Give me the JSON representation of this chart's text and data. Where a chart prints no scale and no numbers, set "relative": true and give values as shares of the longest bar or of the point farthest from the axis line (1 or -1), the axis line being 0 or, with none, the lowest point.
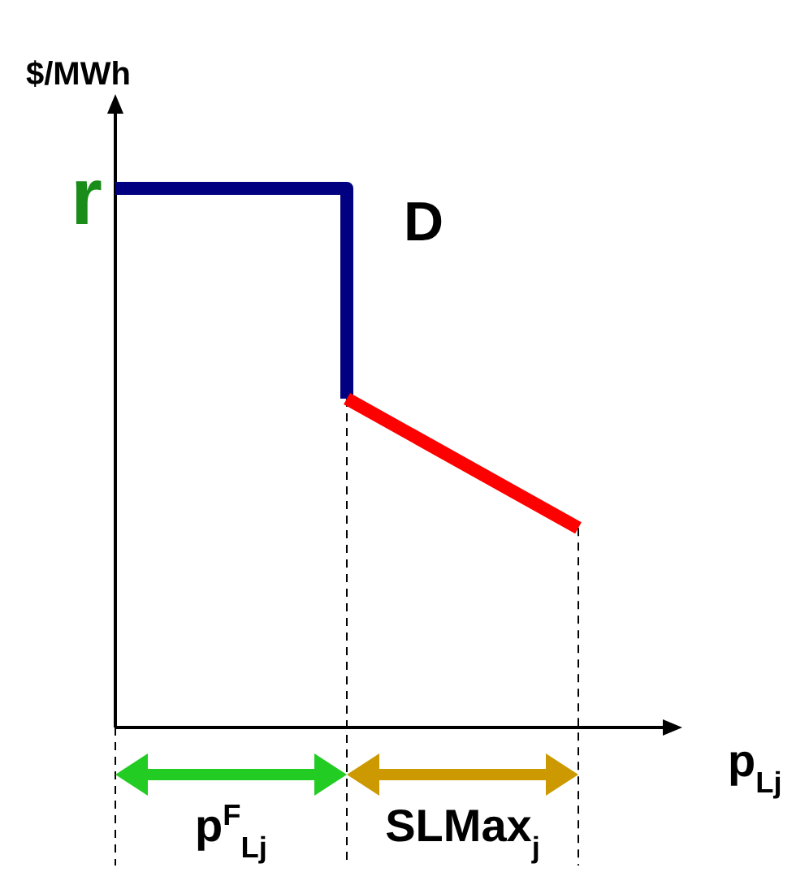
{
  "chart_data": {
    "type": "line",
    "relative": true,
    "ylabel": "$/MWh",
    "xlabel": "p$_{Lj}$",
    "categories": [
      null,
      null,
      null
    ],
    "series": [
      {
        "type": "step",
        "color": "#000080",
        "values": [
          1,
          0.61,
          null
        ]
      },
      {
        "color": "#ff0000",
        "values": [
          null,
          0.61,
          0.37
        ]
      }
    ],
    "annotations": [
      "r",
      "D",
      "p$^{F}$$_{Lj}$",
      "SLMax$_{j}$"
    ]
  }
}
